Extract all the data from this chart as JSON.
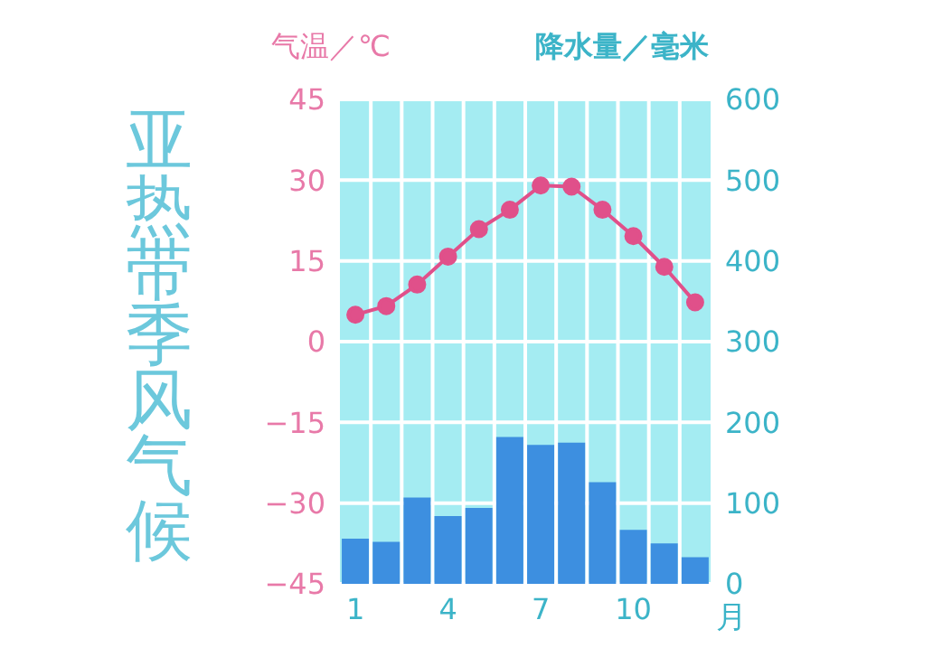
{
  "chart_data": {
    "type": "bar",
    "title": "亚热带季风气候",
    "xlabel": "月",
    "ylabel": "气温／℃",
    "y2label": "降水量／毫米",
    "categories": [
      "1",
      null,
      null,
      "4",
      null,
      null,
      "7",
      null,
      null,
      "10",
      null,
      null
    ],
    "series": [
      {
        "axis": "y2",
        "color": "#3d8fe0",
        "values": [
          56,
          52,
          107,
          84,
          94,
          182,
          172,
          175,
          126,
          67,
          50,
          33
        ]
      },
      {
        "type": "line",
        "axis": "y",
        "color": "#e0508a",
        "marker": "circle",
        "values": [
          5,
          6.6,
          10.6,
          15.8,
          20.9,
          24.5,
          29,
          28.8,
          24.5,
          19.6,
          13.9,
          7.3
        ]
      }
    ],
    "ylim": [
      -45,
      45
    ],
    "yticks": [
      -45,
      -30,
      -15,
      0,
      15,
      30,
      45
    ],
    "y2lim": [
      0,
      600
    ],
    "y2ticks": [
      0,
      100,
      200,
      300,
      400,
      500,
      600
    ],
    "grid": true
  }
}
